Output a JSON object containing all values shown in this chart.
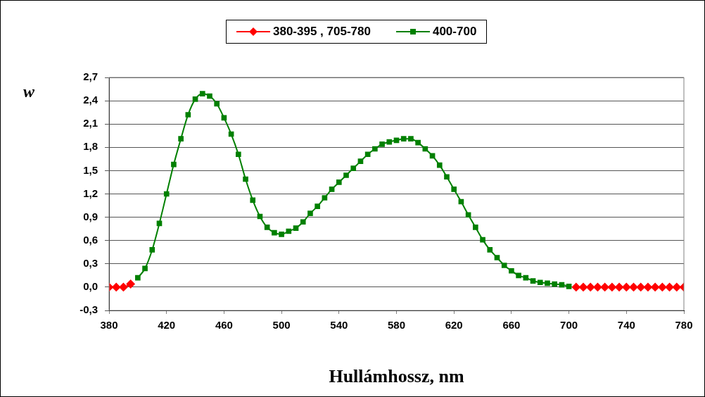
{
  "chart_data": {
    "type": "line",
    "xlabel": "Hullámhossz, nm",
    "ylabel": "w",
    "xlim": [
      380,
      780
    ],
    "xticks": [
      380,
      420,
      460,
      500,
      540,
      580,
      620,
      660,
      700,
      740,
      780
    ],
    "ylim": [
      -0.3,
      2.7
    ],
    "yticks": [
      {
        "value": -0.3,
        "label": "-0,3"
      },
      {
        "value": 0,
        "label": "0,0"
      },
      {
        "value": 0.3,
        "label": "0,3"
      },
      {
        "value": 0.6,
        "label": "0,6"
      },
      {
        "value": 0.9,
        "label": "0,9"
      },
      {
        "value": 1.2,
        "label": "1,2"
      },
      {
        "value": 1.5,
        "label": "1,5"
      },
      {
        "value": 1.8,
        "label": "1,8"
      },
      {
        "value": 2.1,
        "label": "2,1"
      },
      {
        "value": 2.4,
        "label": "2,4"
      },
      {
        "value": 2.7,
        "label": "2,7"
      }
    ],
    "grid": "y",
    "legend": "top",
    "series": [
      {
        "name": "380-395 , 705-780",
        "color": "#ff0000",
        "marker": "diamond",
        "x": [
          380,
          385,
          390,
          395,
          400,
          705,
          710,
          715,
          720,
          725,
          730,
          735,
          740,
          745,
          750,
          755,
          760,
          765,
          770,
          775,
          780
        ],
        "values": [
          0,
          0,
          0,
          0.04,
          null,
          0,
          0,
          0,
          0,
          0,
          0,
          0,
          0,
          0,
          0,
          0,
          0,
          0,
          0,
          0,
          0
        ]
      },
      {
        "name": "400-700",
        "color": "#008000",
        "marker": "square",
        "x": [
          400,
          405,
          410,
          415,
          420,
          425,
          430,
          435,
          440,
          445,
          450,
          455,
          460,
          465,
          470,
          475,
          480,
          485,
          490,
          495,
          500,
          505,
          510,
          515,
          520,
          525,
          530,
          535,
          540,
          545,
          550,
          555,
          560,
          565,
          570,
          575,
          580,
          585,
          590,
          595,
          600,
          605,
          610,
          615,
          620,
          625,
          630,
          635,
          640,
          645,
          650,
          655,
          660,
          665,
          670,
          675,
          680,
          685,
          690,
          695,
          700
        ],
        "values": [
          0.12,
          0.24,
          0.48,
          0.82,
          1.2,
          1.58,
          1.91,
          2.22,
          2.42,
          2.49,
          2.46,
          2.36,
          2.18,
          1.97,
          1.71,
          1.39,
          1.12,
          0.91,
          0.77,
          0.7,
          0.68,
          0.72,
          0.76,
          0.84,
          0.95,
          1.04,
          1.15,
          1.26,
          1.35,
          1.44,
          1.53,
          1.62,
          1.71,
          1.78,
          1.84,
          1.87,
          1.89,
          1.91,
          1.91,
          1.86,
          1.78,
          1.69,
          1.57,
          1.42,
          1.26,
          1.1,
          0.93,
          0.77,
          0.61,
          0.48,
          0.38,
          0.28,
          0.21,
          0.15,
          0.12,
          0.08,
          0.06,
          0.05,
          0.04,
          0.03,
          0.01
        ]
      }
    ]
  }
}
